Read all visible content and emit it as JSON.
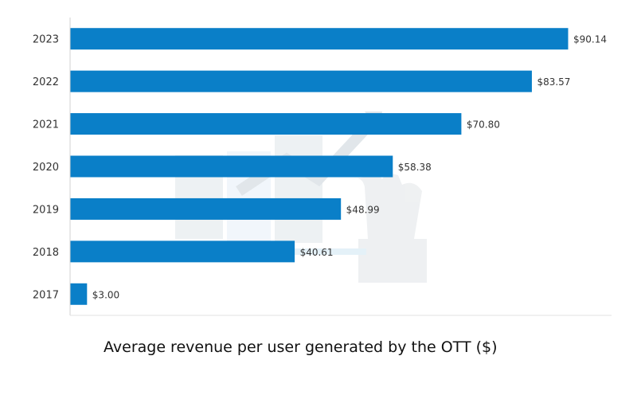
{
  "chart_data": {
    "type": "bar",
    "orientation": "horizontal",
    "categories": [
      "2023",
      "2022",
      "2021",
      "2020",
      "2019",
      "2018",
      "2017"
    ],
    "values": [
      90.14,
      83.57,
      70.8,
      58.38,
      48.99,
      40.61,
      3.0
    ],
    "data_labels": [
      "$90.14",
      "$83.57",
      "$70.80",
      "$58.38",
      "$48.99",
      "$40.61",
      "$3.00"
    ],
    "title": "Average revenue per user generated by the OTT ($)",
    "xlim": [
      0,
      93
    ],
    "grid": false,
    "legend": "none"
  },
  "colors": {
    "bar": "#0a7fc8",
    "axis": "#d0d0d0",
    "tick_label": "#333333",
    "watermark": "#e8eef2"
  }
}
